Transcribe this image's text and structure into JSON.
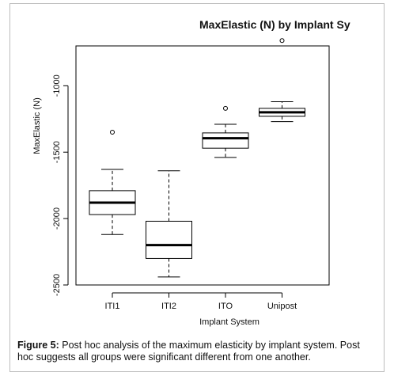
{
  "chart_data": {
    "type": "boxplot",
    "title": "MaxElastic (N) by Implant Sy",
    "xlabel": "Implant System",
    "ylabel": "MaxElastic (N)",
    "ylim": [
      -2500,
      -700
    ],
    "yticks": [
      -2500,
      -2000,
      -1500,
      -1000
    ],
    "ytick_labels": [
      "-2500",
      "-2000",
      "-1500",
      "-1000"
    ],
    "categories": [
      "ITI1",
      "ITI2",
      "ITO",
      "Unipost"
    ],
    "boxes": [
      {
        "name": "ITI1",
        "whisker_low": -2120,
        "q1": -1970,
        "median": -1880,
        "q3": -1790,
        "whisker_high": -1630,
        "outliers": [
          -1350
        ]
      },
      {
        "name": "ITI2",
        "whisker_low": -2440,
        "q1": -2300,
        "median": -2200,
        "q3": -2020,
        "whisker_high": -1640,
        "outliers": []
      },
      {
        "name": "ITO",
        "whisker_low": -1540,
        "q1": -1470,
        "median": -1395,
        "q3": -1355,
        "whisker_high": -1290,
        "outliers": [
          -1170
        ]
      },
      {
        "name": "Unipost",
        "whisker_low": -1270,
        "q1": -1230,
        "median": -1200,
        "q3": -1170,
        "whisker_high": -1120,
        "outliers": [
          -660
        ]
      }
    ],
    "grid": false,
    "legend": "none"
  },
  "caption": {
    "label": "Figure 5:",
    "text": " Post hoc analysis of the maximum elasticity by implant system. Post hoc suggests all groups were significant different from one another."
  }
}
